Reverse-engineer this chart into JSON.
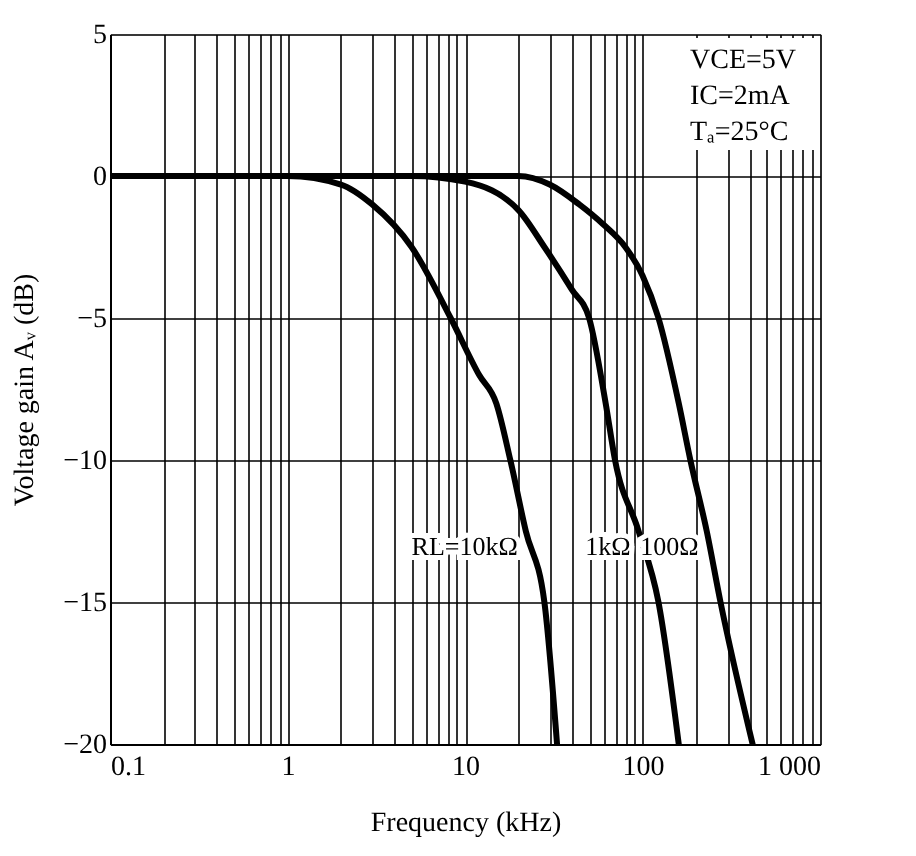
{
  "chart_data": {
    "type": "line",
    "xlabel": "Frequency (kHz)",
    "ylabel": "Voltage gain Aᵥ (dB)",
    "log": "x",
    "xlim": [
      0.1,
      1000
    ],
    "ylim": [
      -20,
      5
    ],
    "xticks": [
      0.1,
      {
        "value": 0.2,
        "label": null
      },
      {
        "value": 0.3,
        "label": null
      },
      {
        "value": 0.4,
        "label": null
      },
      {
        "value": 0.5,
        "label": null
      },
      {
        "value": 0.6,
        "label": null
      },
      {
        "value": 0.7,
        "label": null
      },
      {
        "value": 0.8,
        "label": null
      },
      {
        "value": 0.9,
        "label": null
      },
      1,
      {
        "value": 2,
        "label": null
      },
      {
        "value": 3,
        "label": null
      },
      {
        "value": 4,
        "label": null
      },
      {
        "value": 5,
        "label": null
      },
      {
        "value": 6,
        "label": null
      },
      {
        "value": 7,
        "label": null
      },
      {
        "value": 8,
        "label": null
      },
      {
        "value": 9,
        "label": null
      },
      10,
      {
        "value": 20,
        "label": null
      },
      {
        "value": 30,
        "label": null
      },
      {
        "value": 40,
        "label": null
      },
      {
        "value": 50,
        "label": null
      },
      {
        "value": 60,
        "label": null
      },
      {
        "value": 70,
        "label": null
      },
      {
        "value": 80,
        "label": null
      },
      {
        "value": 90,
        "label": null
      },
      100,
      {
        "value": 200,
        "label": null
      },
      {
        "value": 300,
        "label": null
      },
      {
        "value": 400,
        "label": null
      },
      {
        "value": 500,
        "label": null
      },
      {
        "value": 600,
        "label": null
      },
      {
        "value": 700,
        "label": null
      },
      {
        "value": 800,
        "label": null
      },
      {
        "value": 900,
        "label": null
      },
      {
        "value": 1000,
        "label": "1 000"
      }
    ],
    "yticks": [
      -20,
      -15,
      -10,
      -5,
      0,
      5
    ],
    "grid": true,
    "legend": false,
    "marker": "none",
    "line_style": "solid",
    "annotations": [
      "VCE=5V",
      "IC=2mA",
      "Tₐ=25°C"
    ],
    "series": [
      {
        "name": "RL=10kΩ",
        "color": "#000000",
        "x": [
          0.1,
          0.5,
          1,
          2,
          3,
          5,
          8.3,
          12,
          15,
          18,
          22,
          28,
          33
        ],
        "values": [
          0,
          0,
          0,
          -0.3,
          -1,
          -2.5,
          -5,
          -7,
          -8,
          -10,
          -12.5,
          -15,
          -20
        ]
      },
      {
        "name": "1kΩ",
        "color": "#000000",
        "x": [
          0.1,
          1,
          5,
          10,
          20,
          28,
          40,
          50,
          62,
          70,
          95,
          123,
          160
        ],
        "values": [
          0,
          0,
          0,
          -0.2,
          -1.2,
          -2.5,
          -4,
          -5,
          -8,
          -10,
          -12.5,
          -15,
          -20
        ]
      },
      {
        "name": "100Ω",
        "color": "#000000",
        "x": [
          0.1,
          10,
          20,
          30,
          44,
          60,
          80,
          100,
          123,
          160,
          186,
          230,
          275,
          417
        ],
        "values": [
          0,
          0,
          0,
          -0.3,
          -1,
          -1.7,
          -2.5,
          -3.5,
          -5,
          -8,
          -10,
          -12.5,
          -15,
          -20
        ]
      }
    ]
  }
}
